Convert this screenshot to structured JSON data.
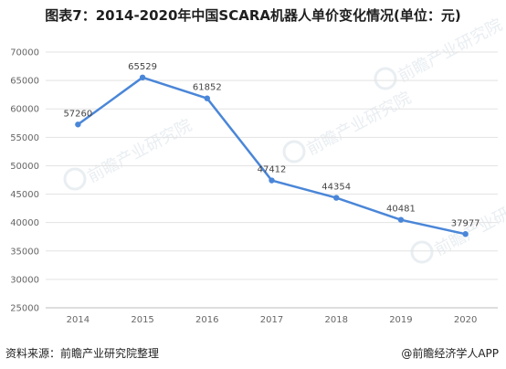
{
  "title": "图表7：2014-2020年中国SCARA机器人单价变化情况(单位：元)",
  "footer": {
    "source": "资料来源：前瞻产业研究院整理",
    "credit": "@前瞻经济学人APP"
  },
  "watermark": "前瞻产业研究院",
  "colors": {
    "line": "#4a86d8",
    "grid": "#e3e3e3",
    "axis": "#bdbdbd"
  },
  "chart_data": {
    "type": "line",
    "title": "图表7：2014-2020年中国SCARA机器人单价变化情况(单位：元)",
    "xlabel": "",
    "ylabel": "",
    "categories": [
      "2014",
      "2015",
      "2016",
      "2017",
      "2018",
      "2019",
      "2020"
    ],
    "series": [
      {
        "values": [
          57260,
          65529,
          61852,
          47412,
          44354,
          40481,
          37977
        ]
      }
    ],
    "ylim": [
      25000,
      70000
    ],
    "yticks": [
      25000,
      30000,
      35000,
      40000,
      45000,
      50000,
      55000,
      60000,
      65000,
      70000
    ],
    "grid": true,
    "legend": "none"
  }
}
